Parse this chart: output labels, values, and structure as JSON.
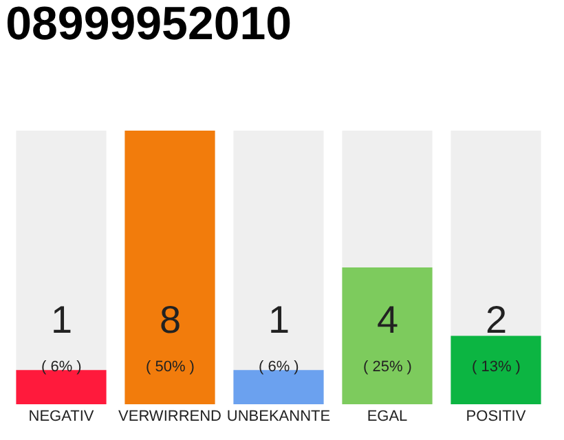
{
  "chart_data": {
    "type": "bar",
    "title": "08999952010",
    "categories": [
      "NEGATIV",
      "VERWIRREND",
      "UNBEKANNTE",
      "EGAL",
      "POSITIV"
    ],
    "values": [
      1,
      8,
      1,
      4,
      2
    ],
    "colors": [
      "#ff1a3c",
      "#f27c0c",
      "#6ba1ef",
      "#7dcb5d",
      "#0cb542"
    ],
    "data_labels": true,
    "annotations": [
      "( 6% )",
      "( 50% )",
      "( 6% )",
      "( 25% )",
      "( 13% )"
    ],
    "tick_labels": "x"
  }
}
